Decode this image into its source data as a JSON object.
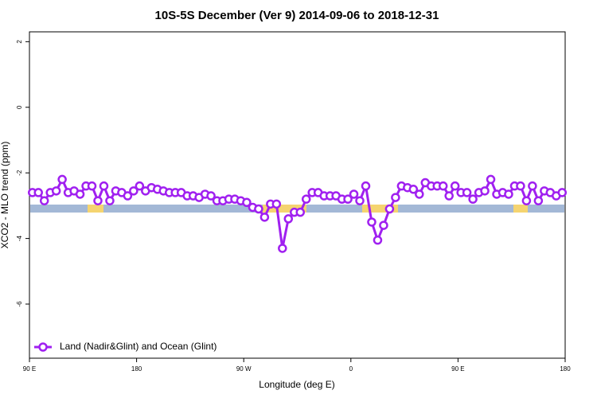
{
  "chart_data": {
    "type": "line",
    "title": "10S-5S December (Ver 9)   2014-09-06 to 2018-12-31",
    "xlabel": "Longitude (deg E)",
    "ylabel": "XCO2 - MLO trend (ppm)",
    "x": [
      92.5,
      97.5,
      102.5,
      107.5,
      112.5,
      117.5,
      122.5,
      127.5,
      132.5,
      137.5,
      142.5,
      147.5,
      152.5,
      157.5,
      162.5,
      167.5,
      172.5,
      177.5,
      182.5,
      187.5,
      192.5,
      197.5,
      202.5,
      207.5,
      212.5,
      217.5,
      222.5,
      227.5,
      232.5,
      237.5,
      242.5,
      247.5,
      252.5,
      257.5,
      262.5,
      267.5,
      272.5,
      277.5,
      282.5,
      287.5,
      292.5,
      297.5,
      302.5,
      307.5,
      312.5,
      317.5,
      322.5,
      327.5,
      332.5,
      337.5,
      342.5,
      347.5,
      352.5,
      357.5,
      362.5,
      367.5,
      372.5,
      377.5,
      382.5,
      387.5,
      392.5,
      397.5,
      402.5,
      407.5,
      412.5,
      417.5,
      422.5,
      427.5,
      432.5,
      437.5,
      442.5,
      447.5,
      452.5,
      457.5,
      462.5,
      467.5,
      472.5,
      477.5,
      482.5,
      487.5,
      492.5,
      497.5,
      502.5,
      507.5,
      512.5,
      517.5,
      522.5,
      527.5,
      532.5,
      537.5
    ],
    "series": [
      {
        "name": "Land (Nadir&Glint) and Ocean (Glint)",
        "color": "#a020f0",
        "values": [
          -2.6,
          -2.6,
          -2.85,
          -2.6,
          -2.55,
          -2.2,
          -2.6,
          -2.55,
          -2.65,
          -2.4,
          -2.4,
          -2.85,
          -2.4,
          -2.85,
          -2.55,
          -2.6,
          -2.7,
          -2.55,
          -2.4,
          -2.55,
          -2.45,
          -2.5,
          -2.55,
          -2.6,
          -2.6,
          -2.6,
          -2.7,
          -2.7,
          -2.75,
          -2.65,
          -2.7,
          -2.85,
          -2.85,
          -2.8,
          -2.8,
          -2.85,
          -2.9,
          -3.05,
          -3.1,
          -3.35,
          -2.95,
          -2.95,
          -4.3,
          -3.4,
          -3.2,
          -3.2,
          -2.8,
          -2.6,
          -2.6,
          -2.7,
          -2.7,
          -2.7,
          -2.8,
          -2.8,
          -2.65,
          -2.85,
          -2.4,
          -3.5,
          -4.05,
          -3.6,
          -3.1,
          -2.75,
          -2.4,
          -2.45,
          -2.5,
          -2.65,
          -2.3,
          -2.4,
          -2.4,
          -2.4,
          -2.7,
          -2.4,
          -2.6,
          -2.6,
          -2.8,
          -2.6,
          -2.55,
          -2.2,
          -2.65,
          -2.6,
          -2.65,
          -2.4,
          -2.4,
          -2.85,
          -2.4,
          -2.85,
          -2.55,
          -2.6,
          -2.7,
          -2.6
        ]
      }
    ],
    "xlim": [
      90,
      540
    ],
    "xticks": [
      {
        "value": 90,
        "label": "90 E"
      },
      180,
      {
        "value": 270,
        "label": "90 W"
      },
      {
        "value": 360,
        "label": "0"
      },
      {
        "value": 450,
        "label": "90 E"
      },
      {
        "value": 540,
        "label": "180"
      }
    ],
    "ylim": [
      -7.65,
      2.3
    ],
    "yticks": [
      -6,
      -4,
      -2,
      0,
      2
    ],
    "legend": "bottom-left"
  }
}
